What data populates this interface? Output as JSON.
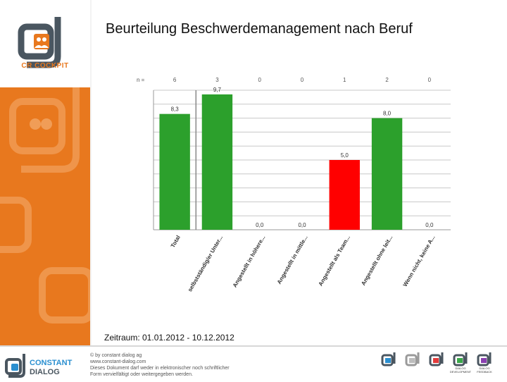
{
  "brand": {
    "logo_text": "CR COCKPIT",
    "accent": "#e8781e",
    "dark": "#4a5660"
  },
  "title": "Beurteilung Beschwerdemanagement nach Beruf",
  "period": "Zeitraum: 01.01.2012 - 10.12.2012",
  "chart_data": {
    "type": "bar",
    "title": "Beurteilung Beschwerdemanagement nach Beruf",
    "n_label": "n =",
    "categories": [
      "Total",
      "selbstständig/er Unter...",
      "Angestellt in höhere...",
      "Angestellt in mittle...",
      "Angestellt als Team...",
      "Angestellt ohne leit...",
      "Wenn nicht, keine A..."
    ],
    "n_values": [
      "6",
      "3",
      "0",
      "0",
      "1",
      "2",
      "0"
    ],
    "values": [
      8.3,
      9.7,
      0.0,
      0.0,
      5.0,
      8.0,
      0.0
    ],
    "value_labels": [
      "8,3",
      "9,7",
      "0,0",
      "0,0",
      "5,0",
      "8,0",
      "0,0"
    ],
    "bar_colors": [
      "#2ca02c",
      "#2ca02c",
      "#2ca02c",
      "#2ca02c",
      "#ff0000",
      "#2ca02c",
      "#2ca02c"
    ],
    "ylim": [
      0,
      10
    ],
    "grid": true,
    "xlabel": "",
    "ylabel": ""
  },
  "footer": {
    "company_line1": "CONSTANT",
    "company_line2": "DIALOG",
    "copyright": "© by constant dialog ag",
    "website": "www.constant-dialog.com",
    "notice_line1": "Dieses Dokument darf weder in elektronischer noch schriftlicher",
    "notice_line2": "Form vervielfältigt oder weitergegeben werden.",
    "product_logos": [
      "",
      "",
      "",
      "DIALOG DEVELOPMENT",
      "DIALOG FEEDBACK"
    ]
  }
}
